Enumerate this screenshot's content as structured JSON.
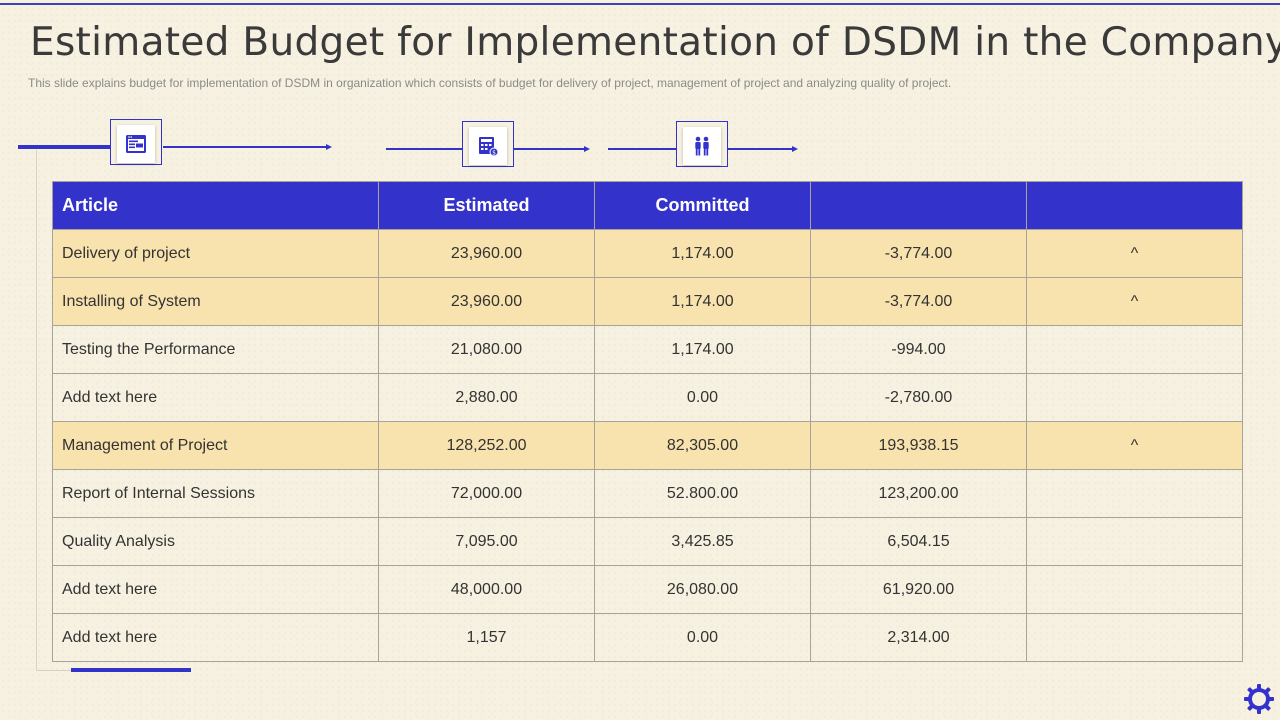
{
  "slide": {
    "title": "Estimated Budget for Implementation of DSDM in the Company",
    "subtitle": "This slide explains budget for implementation of DSDM in organization which consists of budget for delivery of project, management of project and analyzing quality of project."
  },
  "icons": [
    "browser-window-icon",
    "calculator-invoice-icon",
    "team-people-icon",
    "gear-icon"
  ],
  "colors": {
    "accent": "#3333cc",
    "highlight_row": "#f8e2ad",
    "background": "#f7f1e1"
  },
  "table": {
    "headers": [
      "Article",
      "Estimated",
      "Committed",
      "",
      ""
    ],
    "rows": [
      {
        "cells": [
          "Delivery of project",
          "23,960.00",
          "1,174.00",
          "-3,774.00",
          "^"
        ],
        "highlight": true
      },
      {
        "cells": [
          "Installing  of System",
          "23,960.00",
          "1,174.00",
          "-3,774.00",
          "^"
        ],
        "highlight": true
      },
      {
        "cells": [
          "Testing the Performance",
          "21,080.00",
          "1,174.00",
          "-994.00",
          ""
        ],
        "highlight": false
      },
      {
        "cells": [
          "Add text here",
          "2,880.00",
          "0.00",
          "-2,780.00",
          ""
        ],
        "highlight": false
      },
      {
        "cells": [
          "Management of Project",
          "128,252.00",
          "82,305.00",
          "193,938.15",
          "^"
        ],
        "highlight": true
      },
      {
        "cells": [
          "Report of Internal  Sessions",
          "72,000.00",
          "52.800.00",
          "123,200.00",
          ""
        ],
        "highlight": false
      },
      {
        "cells": [
          "Quality Analysis",
          "7,095.00",
          "3,425.85",
          "6,504.15",
          ""
        ],
        "highlight": false
      },
      {
        "cells": [
          "Add text here",
          "48,000.00",
          "26,080.00",
          "61,920.00",
          ""
        ],
        "highlight": false
      },
      {
        "cells": [
          "Add text here",
          "1,157",
          "0.00",
          "2,314.00",
          ""
        ],
        "highlight": false
      }
    ]
  }
}
